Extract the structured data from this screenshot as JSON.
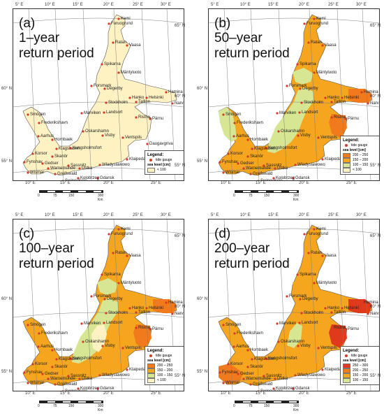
{
  "panels": [
    {
      "letter": "(a)",
      "title_lines": [
        "1–year",
        "return period"
      ],
      "legend_classes": [
        {
          "label": "< 100",
          "color": "#fff2c2"
        }
      ],
      "dominant_color": "#fff2c2"
    },
    {
      "letter": "(b)",
      "title_lines": [
        "50–year",
        "return period"
      ],
      "legend_classes": [
        {
          "label": "200 – 250",
          "color": "#f07a1c"
        },
        {
          "label": "150 – 200",
          "color": "#f5a51e"
        },
        {
          "label": "100 – 150",
          "color": "#d6e693"
        },
        {
          "label": "< 100",
          "color": "#fff2c2"
        }
      ],
      "dominant_color": "#f5a51e"
    },
    {
      "letter": "(c)",
      "title_lines": [
        "100–year",
        "return period"
      ],
      "legend_classes": [
        {
          "label": "200 – 250",
          "color": "#f07a1c"
        },
        {
          "label": "150 – 200",
          "color": "#f5a51e"
        },
        {
          "label": "100 – 150",
          "color": "#d6e693"
        },
        {
          "label": "< 100",
          "color": "#fff2c2"
        }
      ],
      "dominant_color": "#f5a51e"
    },
    {
      "letter": "(d)",
      "title_lines": [
        "200–year",
        "return period"
      ],
      "legend_classes": [
        {
          "label": "250 – 300",
          "color": "#e03a1c"
        },
        {
          "label": "200 – 250",
          "color": "#f07a1c"
        },
        {
          "label": "150 – 200",
          "color": "#f5a51e"
        },
        {
          "label": "100 – 150",
          "color": "#d6e693"
        }
      ],
      "dominant_color": "#f5a51e"
    }
  ],
  "legend": {
    "title": "Legend:",
    "gauge_label": "tide gauge",
    "sea_level_label": "sea level [cm]"
  },
  "axes": {
    "top_lon": [
      "5° E",
      "10° E",
      "15° E",
      "20° E",
      "25° E",
      "30° E"
    ],
    "bottom_lon": [
      "10° E",
      "15° E",
      "20° E",
      "25° E"
    ],
    "right_lat": [
      "65° N",
      "60° N",
      "55° N"
    ],
    "left_lat": [
      "60° N",
      "55° N"
    ]
  },
  "scale": {
    "ticks": [
      "0",
      "75",
      "150",
      "300 Km"
    ]
  },
  "stations": [
    "Kemi",
    "Furuogrund",
    "Ratan",
    "Vaasa",
    "Spikarna",
    "Mäntyluoto",
    "Forsmark",
    "Degerby",
    "Hamina",
    "Helsinki",
    "Hanko",
    "Tallinn",
    "Narva",
    "Stockholm",
    "Landsort",
    "Ristna",
    "Pärnu",
    "Smögen",
    "Marviken",
    "Frederikshavn",
    "Oskarshamn",
    "Visby",
    "Ventspils",
    "Daugavgriva",
    "Aarhus",
    "Hornbaek",
    "Klagshamn",
    "Kungsholmsfort",
    "Korsor",
    "Skanör",
    "Fynshav",
    "Gedser",
    "Klaipeda",
    "Sassnitz",
    "Warnemünde",
    "Ustka",
    "Wladyslawowo",
    "Wismar",
    "Greifswald",
    "Kolobrzeg",
    "Gdansk",
    "Swinoujscie"
  ]
}
